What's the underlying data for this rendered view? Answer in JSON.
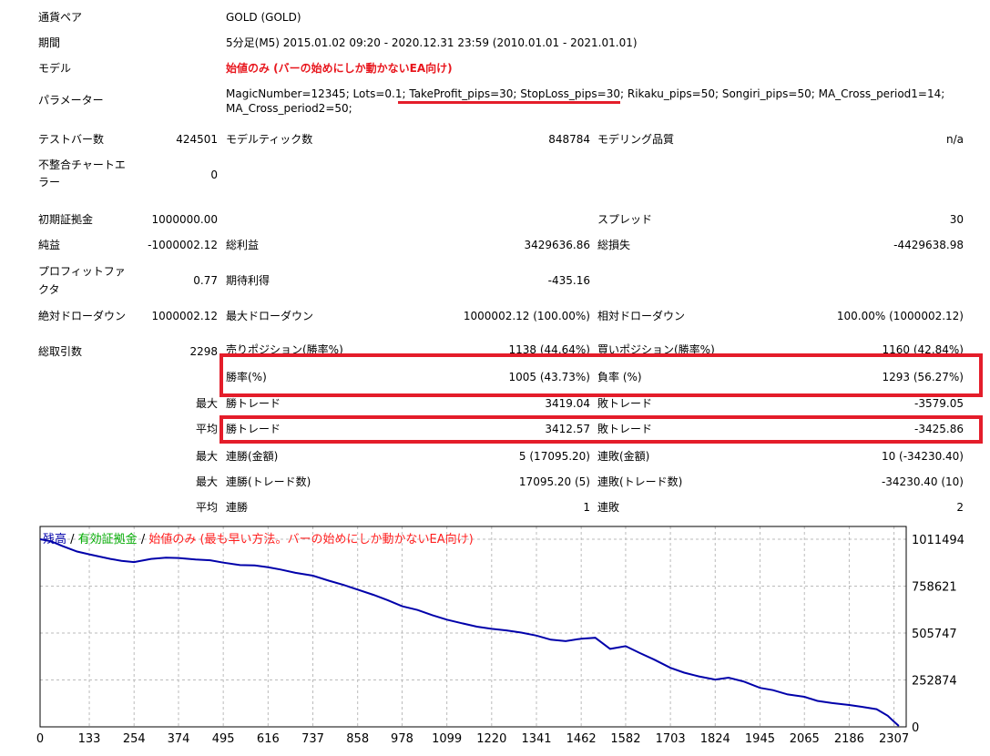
{
  "summary": {
    "pair_label": "通貨ペア",
    "pair_value": "GOLD (GOLD)",
    "period_label": "期間",
    "period_value": "5分足(M5) 2015.01.02 09:20 - 2020.12.31 23:59 (2010.01.01 - 2021.01.01)",
    "model_label": "モデル",
    "model_value": "始値のみ (バーの始めにしか動かないEA向け)",
    "params_label": "パラメーター",
    "params_line1_a": "MagicNumber=12345; Lots=0.1;",
    "params_line1_b": "TakeProfit_pips=30; StopLoss_pips=30;",
    "params_line1_c": "Rikaku_pips=50; Songiri_pips=50; MA_Cross_period1=14;",
    "params_line2": "MA_Cross_period2=50;"
  },
  "stats": {
    "bars_label": "テストバー数",
    "bars_value": "424501",
    "ticks_label": "モデルティック数",
    "ticks_value": "848784",
    "quality_label": "モデリング品質",
    "quality_value": "n/a",
    "mismatch_label_1": "不整合チャートエ",
    "mismatch_label_2": "ラー",
    "mismatch_value": "0",
    "deposit_label": "初期証拠金",
    "deposit_value": "1000000.00",
    "spread_label": "スプレッド",
    "spread_value": "30",
    "net_label": "純益",
    "net_value": "-1000002.12",
    "gross_profit_label": "総利益",
    "gross_profit_value": "3429636.86",
    "gross_loss_label": "総損失",
    "gross_loss_value": "-4429638.98",
    "pf_label_1": "プロフィットファ",
    "pf_label_2": "クタ",
    "pf_value": "0.77",
    "expected_label": "期待利得",
    "expected_value": "-435.16",
    "abs_dd_label": "絶対ドローダウン",
    "abs_dd_value": "1000002.12",
    "max_dd_label": "最大ドローダウン",
    "max_dd_value": "1000002.12 (100.00%)",
    "rel_dd_label": "相対ドローダウン",
    "rel_dd_value": "100.00% (1000002.12)",
    "total_trades_label": "総取引数",
    "total_trades_value": "2298",
    "short_label": "売りポジション(勝率%)",
    "short_value": "1138 (44.64%)",
    "long_label": "買いポジション(勝率%)",
    "long_value": "1160 (42.84%)",
    "win_rate_label": "勝率(%)",
    "win_rate_value": "1005 (43.73%)",
    "loss_rate_label": "負率 (%)",
    "loss_rate_value": "1293 (56.27%)",
    "max_label": "最大",
    "avg_label": "平均",
    "max_win_label": "勝トレード",
    "max_win_value": "3419.04",
    "max_loss_label": "敗トレード",
    "max_loss_value": "-3579.05",
    "avg_win_label": "勝トレード",
    "avg_win_value": "3412.57",
    "avg_loss_label": "敗トレード",
    "avg_loss_value": "-3425.86",
    "max_cons_win_amt_label": "連勝(金額)",
    "max_cons_win_amt_value": "5 (17095.20)",
    "max_cons_loss_amt_label": "連敗(金額)",
    "max_cons_loss_amt_value": "10 (-34230.40)",
    "max_cons_win_cnt_label": "連勝(トレード数)",
    "max_cons_win_cnt_value": "17095.20 (5)",
    "max_cons_loss_cnt_label": "連敗(トレード数)",
    "max_cons_loss_cnt_value": "-34230.40 (10)",
    "avg_cons_win_label": "連勝",
    "avg_cons_win_value": "1",
    "avg_cons_loss_label": "連敗",
    "avg_cons_loss_value": "2"
  },
  "chart_title": {
    "balance": "残高",
    "sep1": " / ",
    "equity": "有効証拠金",
    "sep2": " / ",
    "model": "始値のみ (最も早い方法。バーの始めにしか動かないEA向け)"
  },
  "colors": {
    "balance": "#0000aa",
    "equity": "#00aa00",
    "model": "#ff2020",
    "highlight": "#e41d2a"
  },
  "chart_data": {
    "type": "line",
    "x_ticks": [
      0,
      133,
      254,
      374,
      495,
      616,
      737,
      858,
      978,
      1099,
      1220,
      1341,
      1462,
      1582,
      1703,
      1824,
      1945,
      2065,
      2186,
      2307
    ],
    "y_ticks": [
      1011494,
      758621,
      505747,
      252874,
      0
    ],
    "xlim": [
      0,
      2340
    ],
    "ylim": [
      0,
      1080000
    ],
    "grid": true,
    "series": [
      {
        "name": "残高",
        "x": [
          0,
          30,
          60,
          100,
          133,
          160,
          190,
          220,
          254,
          300,
          340,
          374,
          420,
          460,
          495,
          540,
          580,
          616,
          650,
          690,
          737,
          780,
          820,
          858,
          900,
          940,
          978,
          1020,
          1060,
          1099,
          1140,
          1180,
          1220,
          1260,
          1300,
          1341,
          1380,
          1420,
          1462,
          1500,
          1540,
          1582,
          1620,
          1660,
          1703,
          1740,
          1780,
          1824,
          1860,
          1900,
          1945,
          1980,
          2020,
          2065,
          2100,
          2140,
          2186,
          2220,
          2260,
          2290,
          2307,
          2320
        ],
        "y": [
          1011494,
          1000000,
          975000,
          945000,
          930000,
          918000,
          905000,
          895000,
          888000,
          905000,
          912000,
          910000,
          902000,
          898000,
          885000,
          872000,
          870000,
          860000,
          848000,
          830000,
          815000,
          788000,
          765000,
          740000,
          712000,
          682000,
          650000,
          630000,
          602000,
          578000,
          558000,
          540000,
          528000,
          520000,
          508000,
          492000,
          470000,
          462000,
          475000,
          480000,
          420000,
          435000,
          398000,
          362000,
          318000,
          292000,
          272000,
          255000,
          265000,
          245000,
          210000,
          198000,
          175000,
          162000,
          140000,
          128000,
          118000,
          108000,
          95000,
          60000,
          28000,
          5000
        ]
      }
    ]
  }
}
